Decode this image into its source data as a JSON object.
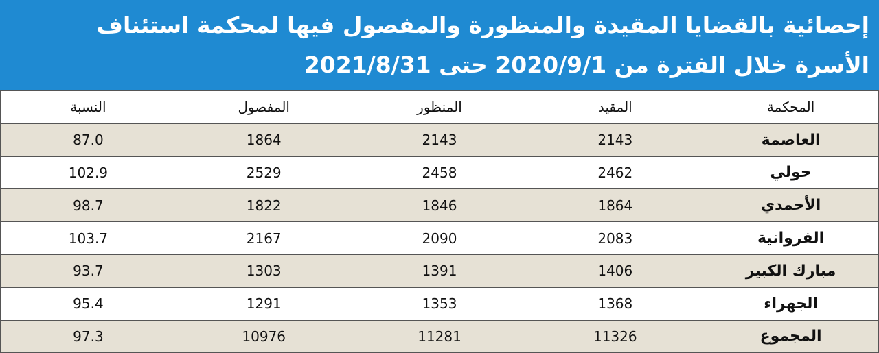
{
  "header": {
    "title": [
      "إحصائية بالقضايا المقيدة والمنظورة والمفصول فيها لمحكمة استئناف",
      "الأسرة خلال الفترة من 2020/9/1 حتى 2021/8/31"
    ]
  },
  "table": {
    "header": [
      "المحكمة",
      "المقيد",
      "المنظور",
      "المفصول",
      "النسبة"
    ],
    "rows": [
      [
        "العاصمة",
        "2143",
        "2143",
        "1864",
        "87.0"
      ],
      [
        "حولي",
        "2462",
        "2458",
        "2529",
        "102.9"
      ],
      [
        "الأحمدي",
        "1864",
        "1846",
        "1822",
        "98.7"
      ],
      [
        "الفروانية",
        "2083",
        "2090",
        "2167",
        "103.7"
      ],
      [
        "مبارك الكبير",
        "1406",
        "1391",
        "1303",
        "93.7"
      ],
      [
        "الجهراء",
        "1368",
        "1353",
        "1291",
        "95.4"
      ],
      [
        "المجموع",
        "11326",
        "11281",
        "10976",
        "97.3"
      ]
    ]
  }
}
